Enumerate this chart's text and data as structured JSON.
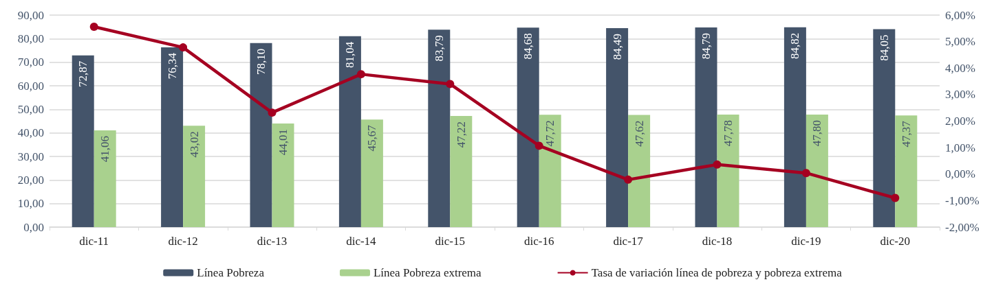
{
  "chart_data": {
    "type": "bar",
    "categories": [
      "dic-11",
      "dic-12",
      "dic-13",
      "dic-14",
      "dic-15",
      "dic-16",
      "dic-17",
      "dic-18",
      "dic-19",
      "dic-20"
    ],
    "series": [
      {
        "name": "Línea Pobreza",
        "color": "#44546a",
        "values": [
          72.87,
          76.34,
          78.1,
          81.04,
          83.79,
          84.68,
          84.49,
          84.79,
          84.82,
          84.05
        ],
        "value_labels": [
          "72,87",
          "76,34",
          "78,10",
          "81,04",
          "83,79",
          "84,68",
          "84,49",
          "84,79",
          "84,82",
          "84,05"
        ]
      },
      {
        "name": "Línea Pobreza extrema",
        "color": "#a9d18e",
        "values": [
          41.06,
          43.02,
          44.01,
          45.67,
          47.22,
          47.72,
          47.62,
          47.78,
          47.8,
          47.37
        ],
        "value_labels": [
          "41,06",
          "43,02",
          "44,01",
          "45,67",
          "47,22",
          "47,72",
          "47,62",
          "47,78",
          "47,80",
          "47,37"
        ]
      },
      {
        "name": "Tasa de variación línea de pobreza y pobreza extrema",
        "type": "line",
        "axis": "y2",
        "color": "#a50021",
        "values": [
          5.56,
          4.78,
          2.32,
          3.77,
          3.4,
          1.07,
          -0.21,
          0.36,
          0.04,
          -0.9
        ]
      }
    ],
    "ylim": [
      0,
      90
    ],
    "yticks": [
      {
        "value": 0,
        "label": "0,00"
      },
      {
        "value": 10,
        "label": "10,00"
      },
      {
        "value": 20,
        "label": "20,00"
      },
      {
        "value": 30,
        "label": "30,00"
      },
      {
        "value": 40,
        "label": "40,00"
      },
      {
        "value": 50,
        "label": "50,00"
      },
      {
        "value": 60,
        "label": "60,00"
      },
      {
        "value": 70,
        "label": "70,00"
      },
      {
        "value": 80,
        "label": "80,00"
      },
      {
        "value": 90,
        "label": "90,00"
      }
    ],
    "y2lim": [
      -2,
      6
    ],
    "y2ticks": [
      {
        "value": -2,
        "label": "-2,00%"
      },
      {
        "value": -1,
        "label": "-1,00%"
      },
      {
        "value": 0,
        "label": "0,00%"
      },
      {
        "value": 1,
        "label": "1,00%"
      },
      {
        "value": 2,
        "label": "2,00%"
      },
      {
        "value": 3,
        "label": "3,00%"
      },
      {
        "value": 4,
        "label": "4,00%"
      },
      {
        "value": 5,
        "label": "5,00%"
      },
      {
        "value": 6,
        "label": "6,00%"
      }
    ],
    "grid": "y",
    "legend": "bottom",
    "marker": "circle",
    "line_style": "solid"
  }
}
